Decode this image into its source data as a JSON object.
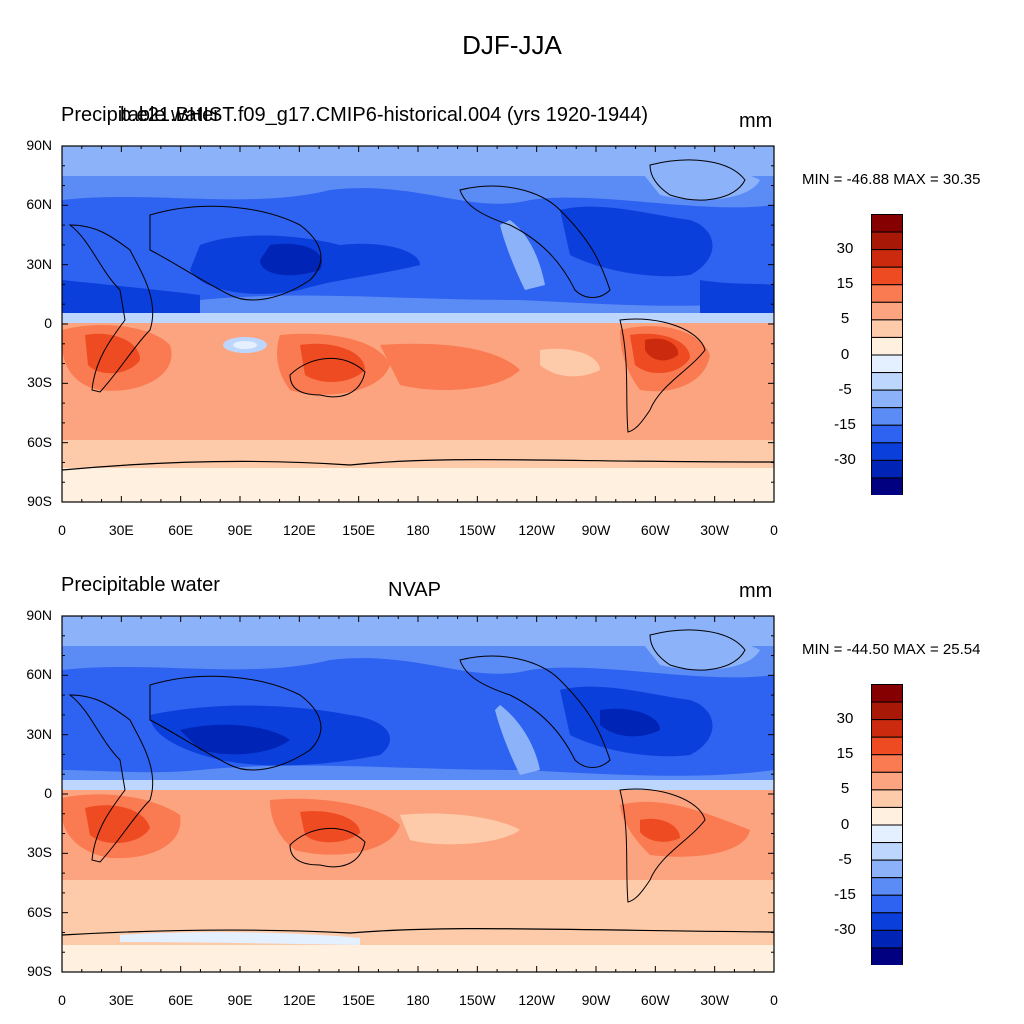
{
  "figure": {
    "title": "DJF-JJA"
  },
  "palette": [
    "#000080",
    "#0024b5",
    "#0a3fdc",
    "#2e62f0",
    "#5b8bf5",
    "#8cb2fa",
    "#bdd6fd",
    "#e4efff",
    "#fff0e0",
    "#fecbaa",
    "#fca47f",
    "#fa7a51",
    "#ee4b22",
    "#cc2a0e",
    "#a71807",
    "#850000"
  ],
  "panels": [
    {
      "left_title": "Precipitable water",
      "center_title": "b.e21.BHIST.f09_g17.CMIP6-historical.004 (yrs 1920-1944)",
      "units": "mm",
      "minmax": "MIN = -46.88 MAX =  30.35"
    },
    {
      "left_title": "Precipitable water",
      "center_title": "NVAP",
      "units": "mm",
      "minmax": "MIN = -44.50 MAX =  25.54"
    }
  ],
  "axes": {
    "lat_labels": [
      "90N",
      "60N",
      "30N",
      "0",
      "30S",
      "60S",
      "90S"
    ],
    "lon_labels": [
      "0",
      "30E",
      "60E",
      "90E",
      "120E",
      "150E",
      "180",
      "150W",
      "120W",
      "90W",
      "60W",
      "30W",
      "0"
    ]
  },
  "colorbar": {
    "labels": [
      "30",
      "15",
      "5",
      "0",
      "-5",
      "-15",
      "-30"
    ]
  }
}
